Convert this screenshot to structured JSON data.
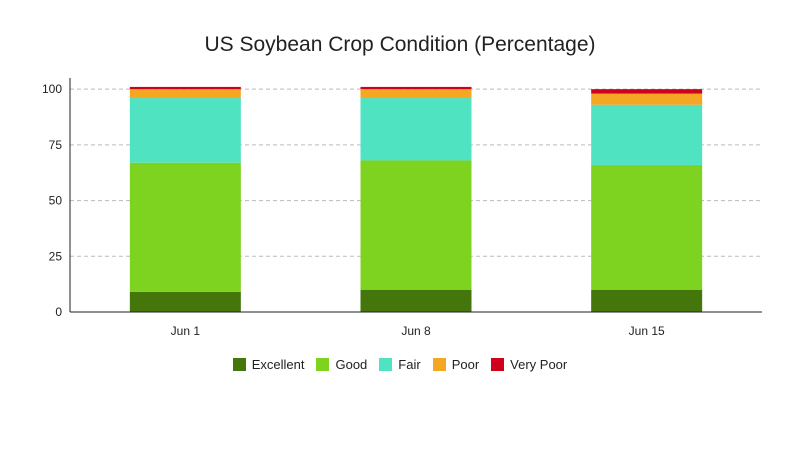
{
  "chart_data": {
    "type": "bar",
    "stacked": true,
    "title": "US Soybean Crop Condition (Percentage)",
    "xlabel": "",
    "ylabel": "",
    "ylim": [
      0,
      105
    ],
    "yticks": [
      0,
      25,
      50,
      75,
      100
    ],
    "grid": true,
    "legend_position": "bottom",
    "categories": [
      "Jun 1",
      "Jun 8",
      "Jun 15"
    ],
    "series": [
      {
        "name": "Excellent",
        "color": "#44760c",
        "values": [
          9,
          10,
          10
        ]
      },
      {
        "name": "Good",
        "color": "#7ed320",
        "values": [
          58,
          58,
          56
        ]
      },
      {
        "name": "Fair",
        "color": "#50e3c2",
        "values": [
          29,
          28,
          27
        ]
      },
      {
        "name": "Poor",
        "color": "#f5a623",
        "values": [
          4,
          4,
          5
        ]
      },
      {
        "name": "Very Poor",
        "color": "#d0021b",
        "values": [
          1,
          1,
          2
        ]
      }
    ]
  }
}
